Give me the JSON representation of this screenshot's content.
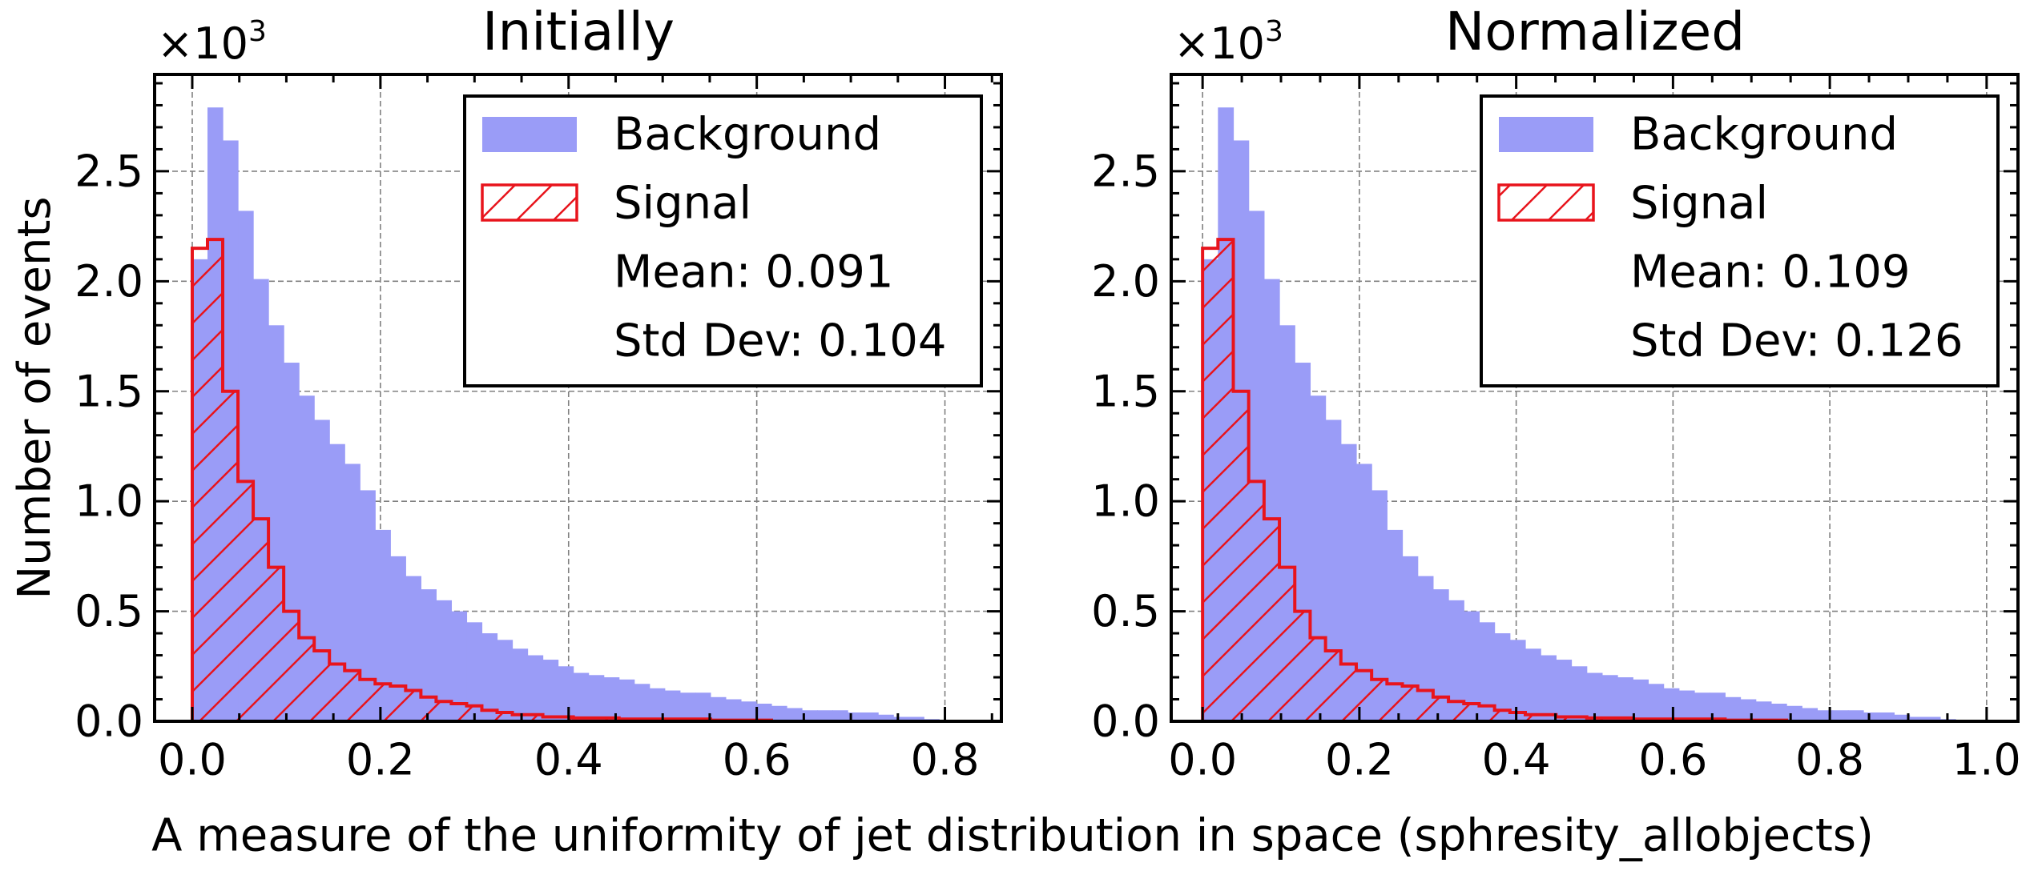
{
  "figure": {
    "ylabel": "Number of events",
    "xlabel": "A measure of the uniformity of jet distribution in space (sphresity_allobjects)"
  },
  "colors": {
    "background_fill": "#9a9cf7",
    "signal_edge": "#e8141c",
    "grid": "#808080",
    "axes": "#000000"
  },
  "chart_data": [
    {
      "type": "bar",
      "title": "Initially",
      "multiplier_label": "×10³",
      "xlim": [
        -0.04,
        0.86
      ],
      "ylim": [
        0,
        2.94
      ],
      "xticks": [
        0.0,
        0.2,
        0.4,
        0.6,
        0.8
      ],
      "xtick_labels": [
        "0.0",
        "0.2",
        "0.4",
        "0.6",
        "0.8"
      ],
      "yticks": [
        0,
        0.5,
        1.0,
        1.5,
        2.0,
        2.5
      ],
      "ytick_labels": [
        "0.0",
        "0.5",
        "1.0",
        "1.5",
        "2.0",
        "2.5"
      ],
      "grid": true,
      "legend_position": "top-right",
      "legend": [
        {
          "label": "Background",
          "marker": "filled"
        },
        {
          "label": "Signal",
          "marker": "hatched"
        },
        {
          "label": "Mean: 0.091",
          "marker": "none"
        },
        {
          "label": "Std Dev: 0.104",
          "marker": "none"
        }
      ],
      "bin_width": 0.0162,
      "x_start": 0.0,
      "series": [
        {
          "name": "Background",
          "style": "filled",
          "values": [
            2.1,
            2.79,
            2.64,
            2.32,
            2.01,
            1.8,
            1.63,
            1.48,
            1.37,
            1.26,
            1.17,
            1.05,
            0.87,
            0.75,
            0.66,
            0.6,
            0.55,
            0.5,
            0.45,
            0.4,
            0.37,
            0.33,
            0.3,
            0.28,
            0.25,
            0.22,
            0.21,
            0.2,
            0.19,
            0.17,
            0.15,
            0.14,
            0.13,
            0.13,
            0.11,
            0.1,
            0.09,
            0.08,
            0.07,
            0.06,
            0.05,
            0.05,
            0.05,
            0.04,
            0.04,
            0.03,
            0.02,
            0.02,
            0.01,
            0.0
          ]
        },
        {
          "name": "Signal",
          "style": "hatched",
          "values": [
            2.15,
            2.19,
            1.5,
            1.09,
            0.92,
            0.7,
            0.5,
            0.38,
            0.32,
            0.26,
            0.23,
            0.19,
            0.17,
            0.16,
            0.14,
            0.11,
            0.09,
            0.08,
            0.07,
            0.05,
            0.04,
            0.03,
            0.03,
            0.02,
            0.02,
            0.015,
            0.015,
            0.015,
            0.01,
            0.01,
            0.01,
            0.01,
            0.01,
            0.01,
            0.005,
            0.005,
            0.005,
            0.005,
            0.0,
            0.0,
            0.0,
            0.0,
            0.0,
            0.0,
            0.0,
            0.0,
            0.0,
            0.0,
            0.0,
            0.0
          ]
        }
      ]
    },
    {
      "type": "bar",
      "title": "Normalized",
      "multiplier_label": "×10³",
      "xlim": [
        -0.04,
        1.04
      ],
      "ylim": [
        0,
        2.94
      ],
      "xticks": [
        0.0,
        0.2,
        0.4,
        0.6,
        0.8,
        1.0
      ],
      "xtick_labels": [
        "0.0",
        "0.2",
        "0.4",
        "0.6",
        "0.8",
        "1.0"
      ],
      "yticks": [
        0,
        0.5,
        1.0,
        1.5,
        2.0,
        2.5
      ],
      "ytick_labels": [
        "0.0",
        "0.5",
        "1.0",
        "1.5",
        "2.0",
        "2.5"
      ],
      "grid": true,
      "legend_position": "top-right",
      "legend": [
        {
          "label": "Background",
          "marker": "filled"
        },
        {
          "label": "Signal",
          "marker": "hatched"
        },
        {
          "label": "Mean: 0.109",
          "marker": "none"
        },
        {
          "label": "Std Dev: 0.126",
          "marker": "none"
        }
      ],
      "bin_width": 0.0196,
      "x_start": 0.0,
      "series": [
        {
          "name": "Background",
          "style": "filled",
          "values": [
            2.1,
            2.79,
            2.64,
            2.32,
            2.01,
            1.8,
            1.63,
            1.48,
            1.37,
            1.26,
            1.17,
            1.05,
            0.87,
            0.75,
            0.66,
            0.6,
            0.55,
            0.5,
            0.45,
            0.4,
            0.37,
            0.33,
            0.3,
            0.28,
            0.25,
            0.22,
            0.21,
            0.2,
            0.19,
            0.17,
            0.15,
            0.14,
            0.13,
            0.13,
            0.11,
            0.1,
            0.09,
            0.08,
            0.07,
            0.06,
            0.05,
            0.05,
            0.05,
            0.04,
            0.04,
            0.03,
            0.02,
            0.02,
            0.01,
            0.0
          ]
        },
        {
          "name": "Signal",
          "style": "hatched",
          "values": [
            2.15,
            2.19,
            1.5,
            1.09,
            0.92,
            0.7,
            0.5,
            0.38,
            0.32,
            0.26,
            0.23,
            0.19,
            0.17,
            0.16,
            0.14,
            0.11,
            0.09,
            0.08,
            0.07,
            0.05,
            0.04,
            0.03,
            0.03,
            0.02,
            0.02,
            0.015,
            0.015,
            0.015,
            0.01,
            0.01,
            0.01,
            0.01,
            0.01,
            0.01,
            0.005,
            0.005,
            0.005,
            0.005,
            0.0,
            0.0,
            0.0,
            0.0,
            0.0,
            0.0,
            0.0,
            0.0,
            0.0,
            0.0,
            0.0,
            0.0
          ]
        }
      ]
    }
  ]
}
